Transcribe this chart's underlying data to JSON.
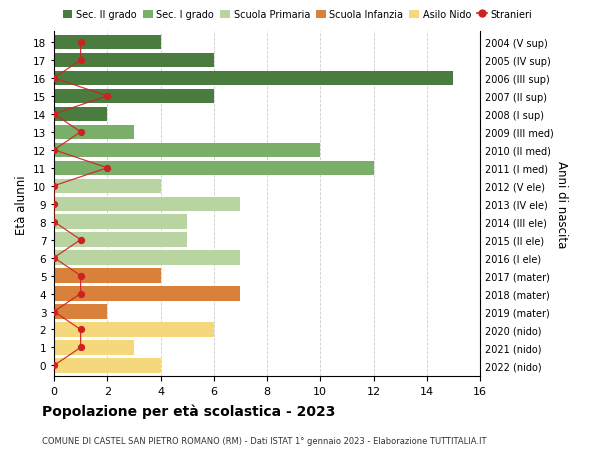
{
  "ages": [
    18,
    17,
    16,
    15,
    14,
    13,
    12,
    11,
    10,
    9,
    8,
    7,
    6,
    5,
    4,
    3,
    2,
    1,
    0
  ],
  "years_labels": [
    "2004 (V sup)",
    "2005 (IV sup)",
    "2006 (III sup)",
    "2007 (II sup)",
    "2008 (I sup)",
    "2009 (III med)",
    "2010 (II med)",
    "2011 (I med)",
    "2012 (V ele)",
    "2013 (IV ele)",
    "2014 (III ele)",
    "2015 (II ele)",
    "2016 (I ele)",
    "2017 (mater)",
    "2018 (mater)",
    "2019 (mater)",
    "2020 (nido)",
    "2021 (nido)",
    "2022 (nido)"
  ],
  "bar_values": [
    4,
    6,
    15,
    6,
    2,
    3,
    10,
    12,
    4,
    7,
    5,
    5,
    7,
    4,
    7,
    2,
    6,
    3,
    4
  ],
  "bar_colors": [
    "#4a7c40",
    "#4a7c40",
    "#4a7c40",
    "#4a7c40",
    "#4a7c40",
    "#7aaf6a",
    "#7aaf6a",
    "#7aaf6a",
    "#b8d4a0",
    "#b8d4a0",
    "#b8d4a0",
    "#b8d4a0",
    "#b8d4a0",
    "#d9813b",
    "#d9813b",
    "#d9813b",
    "#f5d87c",
    "#f5d87c",
    "#f5d87c"
  ],
  "stranieri_values": [
    1,
    1,
    0,
    2,
    0,
    1,
    0,
    2,
    0,
    0,
    0,
    1,
    0,
    1,
    1,
    0,
    1,
    1,
    0
  ],
  "legend_labels": [
    "Sec. II grado",
    "Sec. I grado",
    "Scuola Primaria",
    "Scuola Infanzia",
    "Asilo Nido",
    "Stranieri"
  ],
  "legend_colors": [
    "#4a7c40",
    "#7aaf6a",
    "#b8d4a0",
    "#d9813b",
    "#f5d87c",
    "#cc2222"
  ],
  "title": "Popolazione per età scolastica - 2023",
  "subtitle": "COMUNE DI CASTEL SAN PIETRO ROMANO (RM) - Dati ISTAT 1° gennaio 2023 - Elaborazione TUTTITALIA.IT",
  "ylabel": "Età alunni",
  "right_ylabel": "Anni di nascita",
  "xlim": [
    0,
    16
  ],
  "grid_color": "#cccccc",
  "stranieri_color": "#cc2222"
}
